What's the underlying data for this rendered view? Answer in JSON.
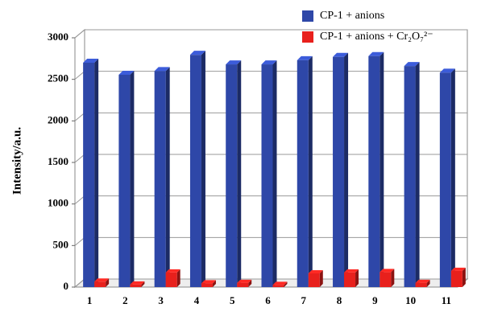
{
  "chart_data": {
    "type": "bar3d",
    "y_label": "Intensity/a.u.",
    "categories": [
      "1",
      "2",
      "3",
      "4",
      "5",
      "6",
      "7",
      "8",
      "9",
      "10",
      "11"
    ],
    "series": [
      {
        "name": "CP-1 + anions",
        "color": "#2e47a8",
        "values": [
          2700,
          2555,
          2600,
          2795,
          2680,
          2680,
          2730,
          2770,
          2780,
          2660,
          2580
        ]
      },
      {
        "name": "CP-1 + anions + Cr₂O₇²⁻",
        "color": "#e8201c",
        "values": [
          65,
          30,
          175,
          45,
          50,
          25,
          165,
          175,
          180,
          50,
          195
        ]
      }
    ],
    "ylim": [
      0,
      3000
    ],
    "yticks": [
      0,
      500,
      1000,
      1500,
      2000,
      2500,
      3000
    ],
    "grid": true
  }
}
